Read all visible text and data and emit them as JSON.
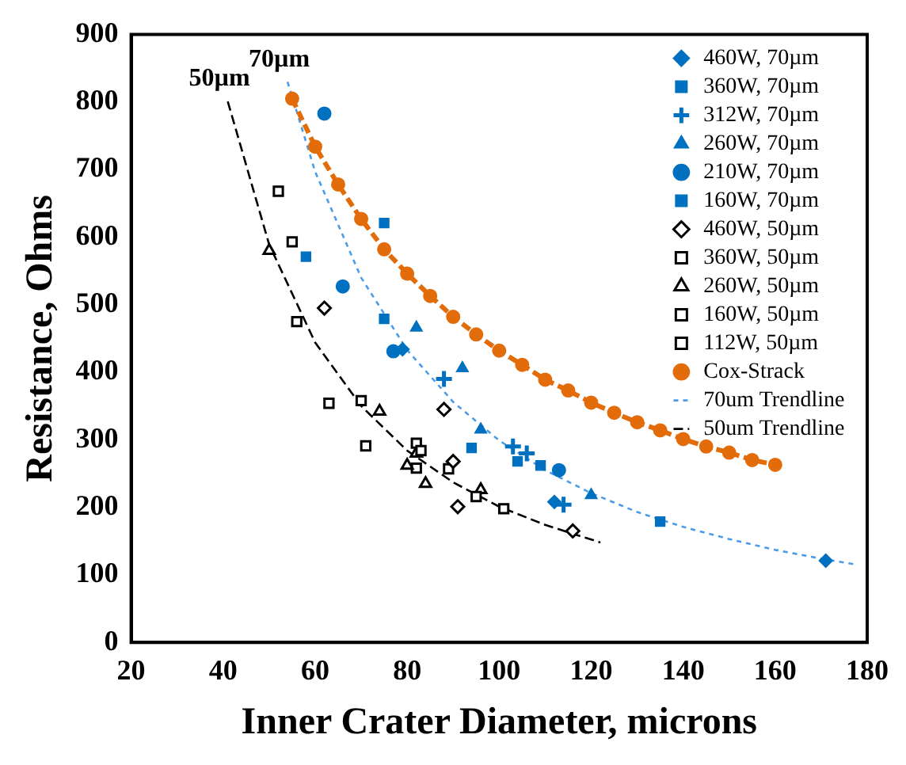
{
  "chart_data": {
    "type": "scatter",
    "xlabel": "Inner Crater Diameter, microns",
    "ylabel": "Resistance, Ohms",
    "xlim": [
      20,
      180
    ],
    "xticks": [
      20,
      40,
      60,
      80,
      100,
      120,
      140,
      160,
      180
    ],
    "ylim": [
      0,
      900
    ],
    "yticks": [
      0,
      100,
      200,
      300,
      400,
      500,
      600,
      700,
      800,
      900
    ],
    "grid": false,
    "legend": "top right",
    "annotations": [
      {
        "text": "70µm",
        "x": 54,
        "y": 830
      },
      {
        "text": "50µm",
        "x": 41,
        "y": 801
      }
    ],
    "series": [
      {
        "name": "460W, 70µm",
        "marker": "diamond",
        "color": "#0070c0",
        "x": [
          171,
          112,
          79
        ],
        "values": [
          121,
          208,
          434
        ]
      },
      {
        "name": "360W, 70µm",
        "marker": "square",
        "color": "#0070c0",
        "x": [
          75,
          94,
          104,
          109,
          135
        ],
        "values": [
          479,
          288,
          268,
          262,
          179
        ]
      },
      {
        "name": "312W, 70µm",
        "marker": "cross",
        "color": "#0070c0",
        "x": [
          88,
          103,
          106,
          114
        ],
        "values": [
          390,
          290,
          280,
          204
        ]
      },
      {
        "name": "260W, 70µm",
        "marker": "triangle",
        "color": "#0070c0",
        "x": [
          82,
          92,
          96,
          120
        ],
        "values": [
          466,
          406,
          315,
          218
        ]
      },
      {
        "name": "210W, 70µm",
        "marker": "circle",
        "color": "#0070c0",
        "x": [
          62,
          66,
          77,
          113
        ],
        "values": [
          783,
          527,
          431,
          255
        ]
      },
      {
        "name": "160W, 70µm",
        "marker": "square",
        "color": "#0070c0",
        "x": [
          75,
          58
        ],
        "values": [
          621,
          571
        ]
      },
      {
        "name": "460W, 50µm",
        "marker": "diamond",
        "color": "#000000",
        "x": [
          62,
          88,
          90,
          91,
          116
        ],
        "values": [
          495,
          345,
          268,
          201,
          165
        ]
      },
      {
        "name": "360W, 50µm",
        "marker": "square",
        "color": "#000000",
        "x": [
          56,
          82,
          83,
          89,
          95,
          101
        ],
        "values": [
          475,
          295,
          284,
          257,
          216,
          198
        ]
      },
      {
        "name": "260W, 50µm",
        "marker": "triangle",
        "color": "#000000",
        "x": [
          50,
          74,
          82,
          80,
          84,
          96
        ],
        "values": [
          580,
          342,
          280,
          262,
          235,
          226
        ]
      },
      {
        "name": "160W, 50µm",
        "marker": "square",
        "color": "#000000",
        "x": [
          55,
          63,
          71,
          82
        ],
        "values": [
          593,
          354,
          291,
          258
        ]
      },
      {
        "name": "112W, 50µm",
        "marker": "square",
        "color": "#000000",
        "x": [
          52,
          70
        ],
        "values": [
          668,
          358
        ]
      },
      {
        "name": "Cox-Strack",
        "type": "line",
        "marker": "circle",
        "line_style": "dashed",
        "color": "#e36c0a",
        "x": [
          55,
          60,
          65,
          70,
          75,
          80,
          85,
          90,
          95,
          100,
          105,
          110,
          115,
          120,
          125,
          130,
          135,
          140,
          145,
          150,
          155,
          160
        ],
        "values": [
          805,
          734,
          678,
          627,
          582,
          546,
          513,
          482,
          456,
          432,
          411,
          389,
          373,
          355,
          340,
          326,
          314,
          301,
          290,
          281,
          270,
          263
        ]
      },
      {
        "name": "70um Trendline",
        "type": "line",
        "marker": "none",
        "line_style": "dotted",
        "color": "#4a9be8",
        "x": [
          54,
          60,
          70,
          80,
          90,
          100,
          110,
          120,
          130,
          140,
          150,
          160,
          170,
          177
        ],
        "values": [
          830,
          697,
          540,
          433,
          356,
          299,
          255,
          221,
          193,
          171,
          153,
          137,
          124,
          116
        ]
      },
      {
        "name": "50um Trendline",
        "type": "line",
        "marker": "none",
        "line_style": "dashed",
        "color": "#000000",
        "x": [
          41,
          50,
          60,
          70,
          80,
          90,
          100,
          110,
          122
        ],
        "values": [
          801,
          589,
          444,
          350,
          284,
          237,
          201,
          174,
          148
        ]
      }
    ]
  }
}
